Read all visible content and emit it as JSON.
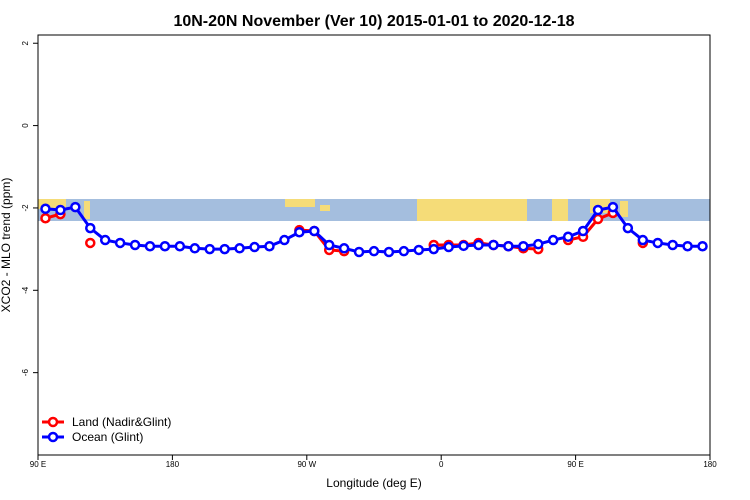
{
  "chart_data": {
    "type": "line",
    "title": "10N-20N November (Ver 10)   2015-01-01 to 2020-12-18",
    "x_label": "Longitude (deg E)",
    "y_label": "XCO2 - MLO trend (ppm)",
    "x": [
      95,
      105,
      115,
      125,
      135,
      145,
      155,
      165,
      175,
      185,
      195,
      205,
      215,
      225,
      235,
      245,
      255,
      265,
      275,
      285,
      295,
      305,
      315,
      325,
      335,
      345,
      355,
      365,
      375,
      385,
      395,
      405,
      415,
      425,
      435,
      445,
      455,
      465,
      475,
      485,
      495,
      505,
      515,
      525,
      535
    ],
    "series": [
      {
        "name": "Land (Nadir&Glint)",
        "color": "#ff0000",
        "values": [
          -2.25,
          -2.15,
          null,
          -2.85,
          null,
          null,
          null,
          null,
          null,
          null,
          null,
          null,
          null,
          null,
          null,
          null,
          null,
          -2.54,
          -2.56,
          -3.02,
          -3.05,
          null,
          null,
          null,
          null,
          null,
          -2.9,
          -2.9,
          -2.9,
          -2.85,
          -2.9,
          -2.93,
          -2.98,
          -3.0,
          null,
          -2.78,
          -2.7,
          -2.27,
          -2.12,
          null,
          -2.85,
          null,
          null,
          null,
          null
        ]
      },
      {
        "name": "Ocean (Glint)",
        "color": "#0000ff",
        "values": [
          -2.02,
          -2.05,
          -1.98,
          -2.49,
          -2.78,
          -2.85,
          -2.9,
          -2.93,
          -2.93,
          -2.93,
          -2.98,
          -3.0,
          -3.0,
          -2.98,
          -2.95,
          -2.93,
          -2.78,
          -2.59,
          -2.56,
          -2.9,
          -2.98,
          -3.07,
          -3.05,
          -3.07,
          -3.05,
          -3.02,
          -3.0,
          -2.95,
          -2.92,
          -2.9,
          -2.9,
          -2.93,
          -2.93,
          -2.88,
          -2.78,
          -2.7,
          -2.56,
          -2.05,
          -1.98,
          -2.49,
          -2.78,
          -2.85,
          -2.9,
          -2.93,
          -2.93
        ]
      }
    ],
    "xlim": [
      90,
      540
    ],
    "xticks": [
      {
        "value": 90,
        "label": "90 E"
      },
      180,
      {
        "value": 270,
        "label": "90 W"
      },
      {
        "value": 360,
        "label": "0"
      },
      {
        "value": 450,
        "label": "90 E"
      },
      {
        "value": 540,
        "label": "180"
      }
    ],
    "ylim": [
      -8,
      2.2
    ],
    "yticks": [
      2,
      0,
      -2,
      -4,
      -6
    ],
    "legend": "bottomleft"
  }
}
